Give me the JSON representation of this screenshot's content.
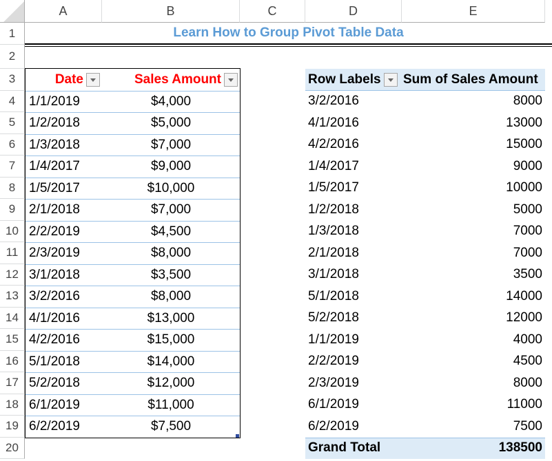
{
  "columns": [
    "A",
    "B",
    "C",
    "D",
    "E"
  ],
  "row_numbers": [
    "1",
    "2",
    "3",
    "4",
    "5",
    "6",
    "7",
    "8",
    "9",
    "10",
    "11",
    "12",
    "13",
    "14",
    "15",
    "16",
    "17",
    "18",
    "19",
    "20"
  ],
  "title": "Learn How to Group Pivot Table Data",
  "source_table": {
    "headers": [
      "Date",
      "Sales Amount"
    ],
    "rows": [
      [
        "1/1/2019",
        "$4,000"
      ],
      [
        "1/2/2018",
        "$5,000"
      ],
      [
        "1/3/2018",
        "$7,000"
      ],
      [
        "1/4/2017",
        "$9,000"
      ],
      [
        "1/5/2017",
        "$10,000"
      ],
      [
        "2/1/2018",
        "$7,000"
      ],
      [
        "2/2/2019",
        "$4,500"
      ],
      [
        "2/3/2019",
        "$8,000"
      ],
      [
        "3/1/2018",
        "$3,500"
      ],
      [
        "3/2/2016",
        "$8,000"
      ],
      [
        "4/1/2016",
        "$13,000"
      ],
      [
        "4/2/2016",
        "$15,000"
      ],
      [
        "5/1/2018",
        "$14,000"
      ],
      [
        "5/2/2018",
        "$12,000"
      ],
      [
        "6/1/2019",
        "$11,000"
      ],
      [
        "6/2/2019",
        "$7,500"
      ]
    ]
  },
  "pivot_table": {
    "headers": [
      "Row Labels",
      "Sum of Sales Amount"
    ],
    "rows": [
      [
        "3/2/2016",
        "8000"
      ],
      [
        "4/1/2016",
        "13000"
      ],
      [
        "4/2/2016",
        "15000"
      ],
      [
        "1/4/2017",
        "9000"
      ],
      [
        "1/5/2017",
        "10000"
      ],
      [
        "1/2/2018",
        "5000"
      ],
      [
        "1/3/2018",
        "7000"
      ],
      [
        "2/1/2018",
        "7000"
      ],
      [
        "3/1/2018",
        "3500"
      ],
      [
        "5/1/2018",
        "14000"
      ],
      [
        "5/2/2018",
        "12000"
      ],
      [
        "1/1/2019",
        "4000"
      ],
      [
        "2/2/2019",
        "4500"
      ],
      [
        "2/3/2019",
        "8000"
      ],
      [
        "6/1/2019",
        "11000"
      ],
      [
        "6/2/2019",
        "7500"
      ]
    ],
    "grand_total_label": "Grand Total",
    "grand_total_value": "138500"
  },
  "colors": {
    "title": "#5b9bd5",
    "header_red": "#ff0000",
    "pivot_fill": "#ddebf7",
    "pivot_border": "#9bc2e6"
  }
}
